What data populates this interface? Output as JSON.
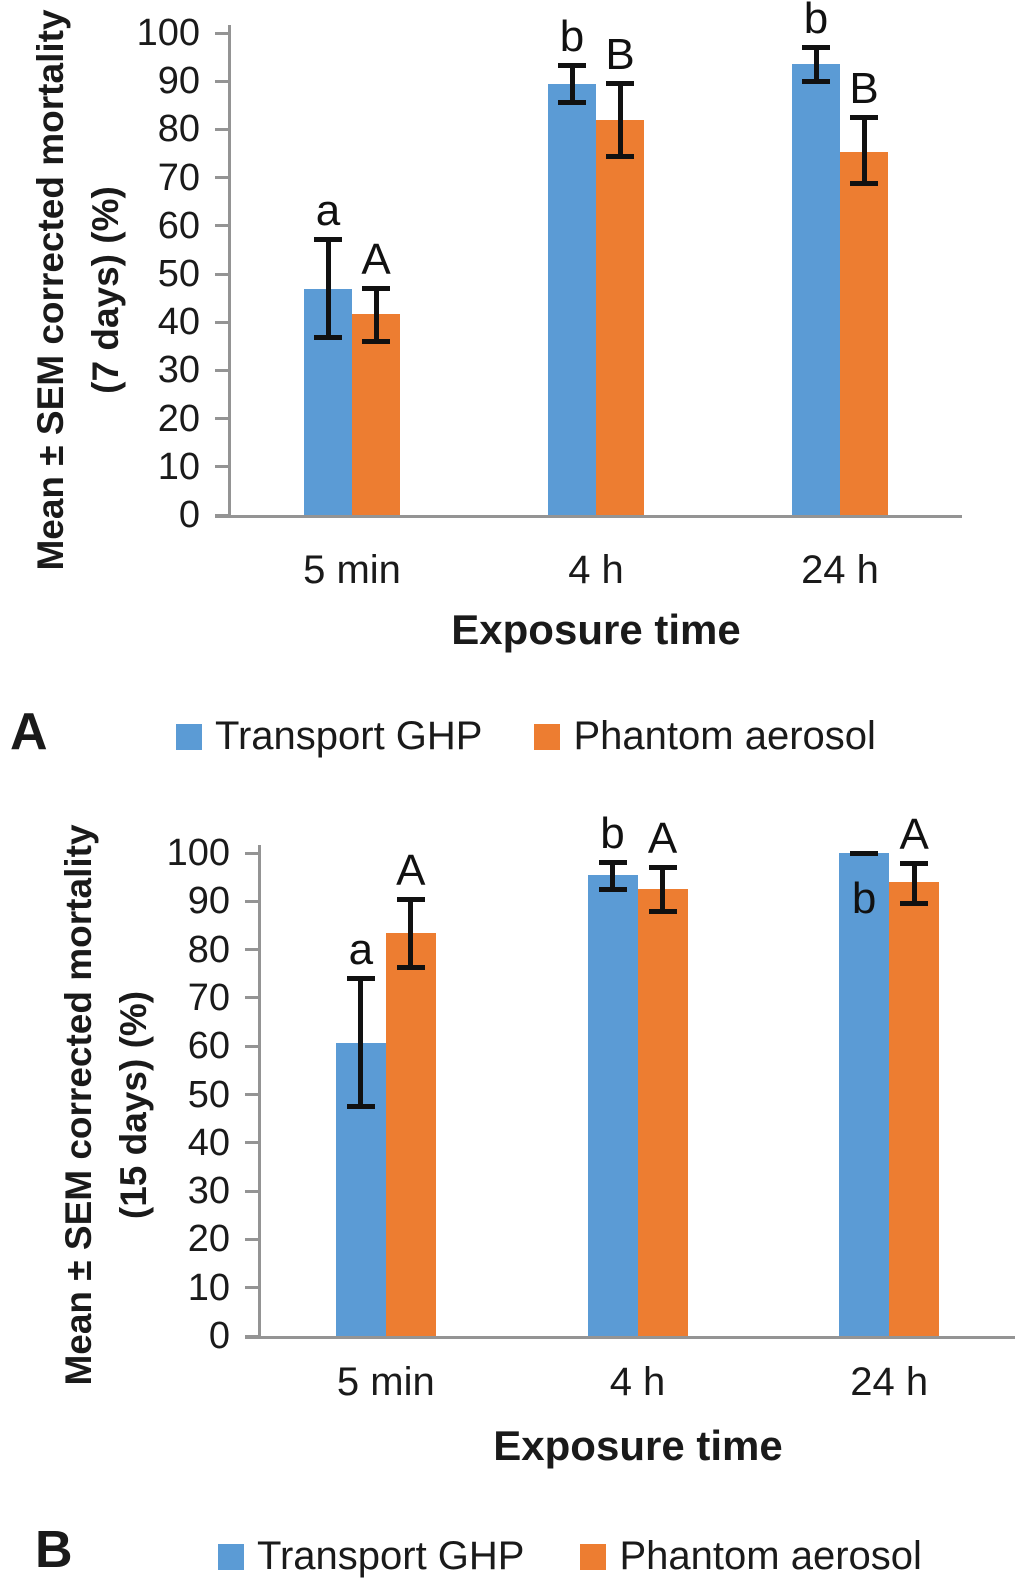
{
  "figure_note": "Two-panel grouped bar chart figure comparing insecticide treatments over exposure times",
  "accent_colors": {
    "series_blue": "#5B9BD5",
    "series_orange": "#ED7D31",
    "axis_gray": "#949494"
  },
  "chart_data": [
    {
      "type": "bar",
      "panel_letter": "A",
      "xlabel": "Exposure time",
      "ylabel": "Mean ± SEM corrected mortality (7 days) (%)",
      "ylabel_lines": [
        "Mean ± SEM corrected mortality",
        "(7 days) (%)"
      ],
      "categories": [
        "5 min",
        "4 h",
        "24 h"
      ],
      "ylim": [
        0,
        100
      ],
      "ytick_step": 10,
      "grid": false,
      "legend_position": "bottom",
      "error_bar_type": "SEM",
      "series": [
        {
          "name": "Transport GHP",
          "color": "#5B9BD5",
          "values": [
            46.9,
            89.4,
            93.5
          ],
          "error_upper": [
            57.2,
            93.4,
            97.0
          ],
          "error_lower": [
            36.9,
            85.7,
            90.0
          ],
          "sig_letters": [
            "a",
            "b",
            "b"
          ],
          "letters_inside": [
            false,
            false,
            false
          ]
        },
        {
          "name": "Phantom aerosol",
          "color": "#ED7D31",
          "values": [
            41.8,
            82.0,
            75.4
          ],
          "error_upper": [
            47.1,
            89.6,
            82.5
          ],
          "error_lower": [
            36.2,
            74.5,
            68.9
          ],
          "sig_letters": [
            "A",
            "B",
            "B"
          ],
          "letters_inside": [
            false,
            false,
            false
          ]
        }
      ]
    },
    {
      "type": "bar",
      "panel_letter": "B",
      "xlabel": "Exposure time",
      "ylabel": "Mean ± SEM corrected mortality (15 days) (%)",
      "ylabel_lines": [
        "Mean ± SEM corrected mortality",
        "(15 days) (%)"
      ],
      "categories": [
        "5 min",
        "4 h",
        "24 h"
      ],
      "ylim": [
        0,
        100
      ],
      "ytick_step": 10,
      "grid": false,
      "legend_position": "bottom",
      "error_bar_type": "SEM",
      "series": [
        {
          "name": "Transport GHP",
          "color": "#5B9BD5",
          "values": [
            60.7,
            95.4,
            100.0
          ],
          "error_upper": [
            74.1,
            98.1,
            100.0
          ],
          "error_lower": [
            47.6,
            92.6,
            100.0
          ],
          "sig_letters": [
            "a",
            "b",
            "b"
          ],
          "letters_inside": [
            false,
            false,
            true
          ]
        },
        {
          "name": "Phantom aerosol",
          "color": "#ED7D31",
          "values": [
            83.4,
            92.5,
            94.0
          ],
          "error_upper": [
            90.5,
            97.1,
            97.9
          ],
          "error_lower": [
            76.4,
            87.9,
            89.6
          ],
          "sig_letters": [
            "A",
            "A",
            "A"
          ],
          "letters_inside": [
            false,
            false,
            false
          ]
        }
      ]
    }
  ]
}
